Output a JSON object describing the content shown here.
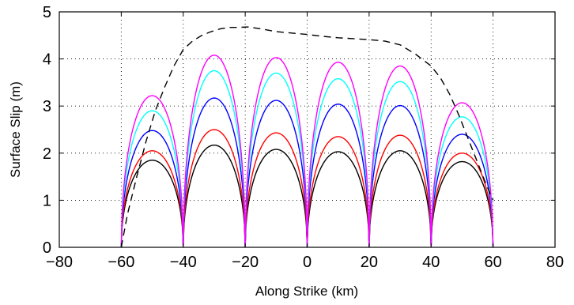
{
  "chart_data": {
    "type": "line",
    "xlabel": "Along Strike (km)",
    "ylabel": "Surface Slip (m)",
    "xlim": [
      -80,
      80
    ],
    "ylim": [
      0,
      5
    ],
    "xticks": [
      -80,
      -60,
      -40,
      -20,
      0,
      20,
      40,
      60,
      80
    ],
    "yticks": [
      0,
      1,
      2,
      3,
      4,
      5
    ],
    "xtick_labels": [
      "−80",
      "−60",
      "−40",
      "−20",
      "0",
      "20",
      "40",
      "60",
      "80"
    ],
    "ytick_labels": [
      "0",
      "1",
      "2",
      "3",
      "4",
      "5"
    ],
    "grid": true,
    "segments": [
      [
        -60,
        -40
      ],
      [
        -40,
        -20
      ],
      [
        -20,
        0
      ],
      [
        0,
        20
      ],
      [
        20,
        40
      ],
      [
        40,
        60
      ]
    ],
    "series": [
      {
        "color": "#000000",
        "peaks": [
          1.85,
          2.17,
          2.08,
          2.03,
          2.05,
          1.82
        ]
      },
      {
        "color": "#ff0000",
        "peaks": [
          2.05,
          2.5,
          2.43,
          2.35,
          2.38,
          2.0
        ]
      },
      {
        "color": "#0000ff",
        "peaks": [
          2.48,
          3.17,
          3.12,
          3.04,
          3.01,
          2.4
        ]
      },
      {
        "color": "#00ffff",
        "peaks": [
          2.9,
          3.75,
          3.7,
          3.58,
          3.52,
          2.77
        ]
      },
      {
        "color": "#ff00ff",
        "peaks": [
          3.22,
          4.08,
          4.03,
          3.93,
          3.85,
          3.07
        ]
      }
    ],
    "envelope": {
      "color": "#000000",
      "style": "dashed",
      "x": [
        -60,
        -58,
        -55,
        -52,
        -49,
        -46,
        -43,
        -40,
        -37,
        -34,
        -31,
        -28,
        -25,
        -22,
        -19,
        -15,
        -10,
        -5,
        0,
        5,
        10,
        15,
        20,
        25,
        30,
        35,
        40,
        43,
        46,
        49,
        52,
        55,
        58,
        60
      ],
      "y": [
        0.0,
        0.7,
        1.5,
        2.25,
        2.9,
        3.4,
        3.85,
        4.2,
        4.38,
        4.5,
        4.58,
        4.64,
        4.67,
        4.67,
        4.68,
        4.64,
        4.58,
        4.55,
        4.52,
        4.48,
        4.45,
        4.43,
        4.41,
        4.38,
        4.3,
        4.1,
        3.85,
        3.6,
        3.25,
        2.8,
        2.3,
        1.8,
        1.3,
        1.0
      ]
    }
  }
}
